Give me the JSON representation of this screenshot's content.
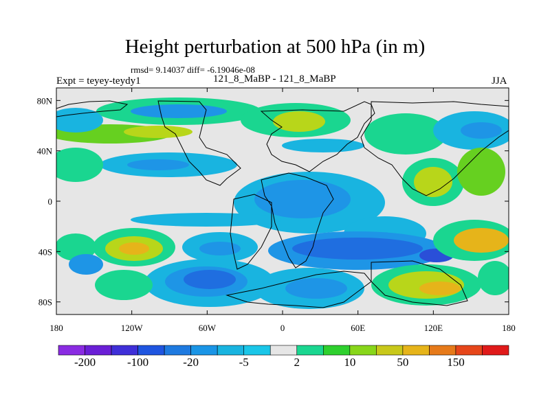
{
  "figure": {
    "title": "Height perturbation at 500 hPa (in m)",
    "stats": "rmsd= 9.14037 diff= -6.19046e-08",
    "left_label": "Expt = teyey-teydy1",
    "center_label": "121_8_MaBP - 121_8_MaBP",
    "right_label": "JJA"
  },
  "axes": {
    "x_ticks": [
      "180",
      "120W",
      "60W",
      "0",
      "60E",
      "120E",
      "180"
    ],
    "x_values": [
      -180,
      -120,
      -60,
      0,
      60,
      120,
      180
    ],
    "y_ticks": [
      "80N",
      "40N",
      "0",
      "40S",
      "80S"
    ],
    "y_values": [
      80,
      40,
      0,
      -40,
      -80
    ],
    "lon_range": [
      -180,
      180
    ],
    "lat_range": [
      -90,
      90
    ]
  },
  "colorbar": {
    "labels": [
      "-200",
      "-100",
      "-20",
      "-5",
      "2",
      "10",
      "50",
      "150"
    ],
    "colors": [
      "#8a2be2",
      "#6a1fd6",
      "#3f2fd8",
      "#1f55e0",
      "#1e7ae0",
      "#1a95e6",
      "#19b4e0",
      "#1ac6e8",
      "#e6e6e6",
      "#1ad690",
      "#2ed02e",
      "#88d61a",
      "#c8c81a",
      "#e6b41a",
      "#e67a1a",
      "#e6461a",
      "#e01a1a"
    ]
  },
  "map_colors": {
    "ocean_neutral": "#e6e6e6",
    "cyan": "#19b4e0",
    "light_blue": "#1e95e6",
    "blue": "#1f6ee0",
    "deep_blue": "#2a4fd8",
    "green": "#1ad690",
    "light_green": "#66d020",
    "yellow_green": "#b8d61a",
    "orange": "#e6b41a"
  }
}
